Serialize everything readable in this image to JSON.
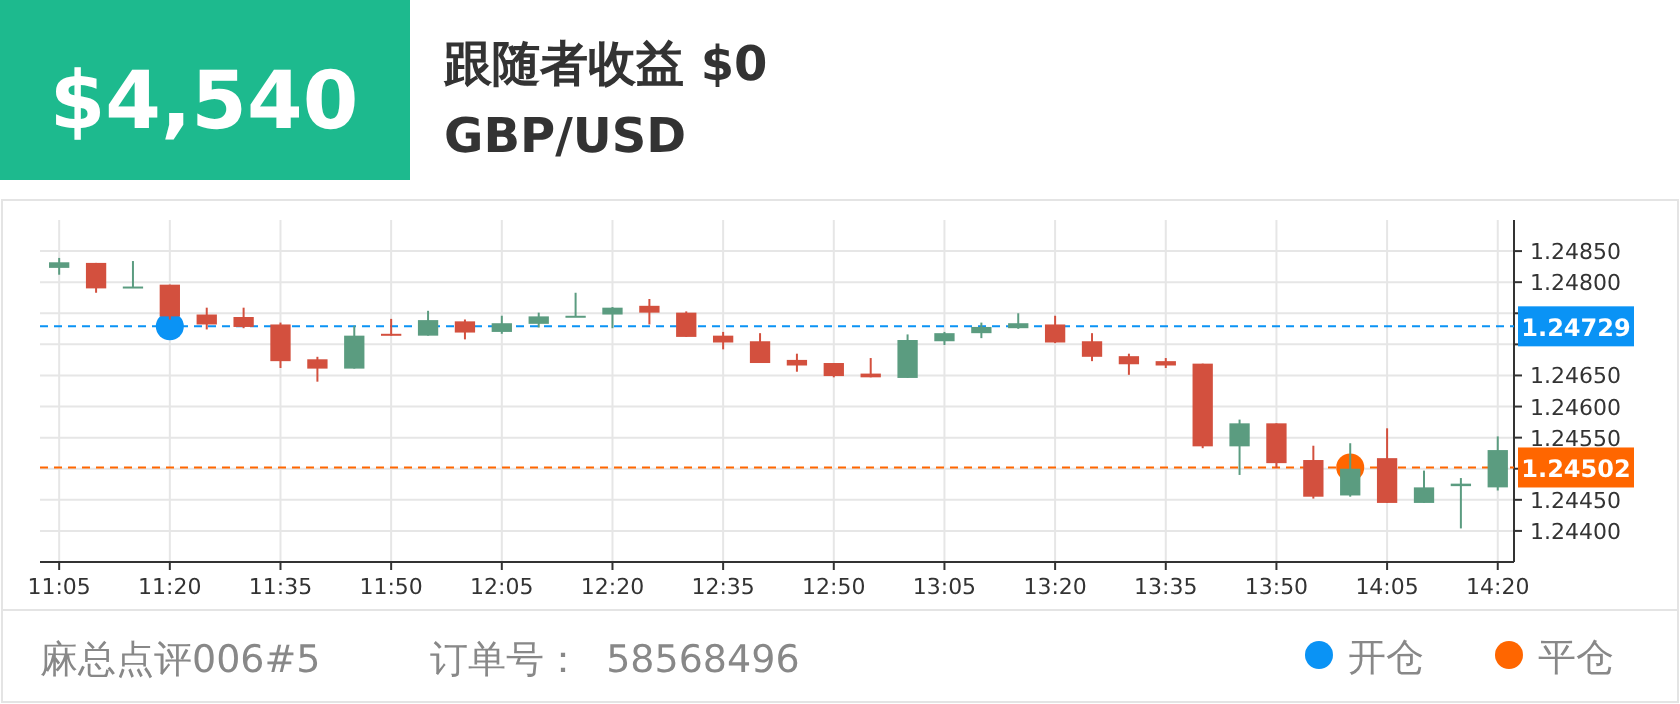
{
  "chart_data": {
    "type": "candlestick",
    "title": "跟随者收益 $0",
    "subtitle": "GBP/USD",
    "annotations": [
      "$4,540",
      "麻总点评006#5",
      "订单号：  58568496"
    ],
    "x": [
      11.0833,
      11.1667,
      11.25,
      11.3333,
      11.4167,
      11.5,
      11.5833,
      11.6667,
      11.75,
      11.8333,
      11.9167,
      12,
      12.0833,
      12.1667,
      12.25,
      12.3333,
      12.4167,
      12.5,
      12.5833,
      12.6667,
      12.75,
      12.8333,
      12.9167,
      13,
      13.0833,
      13.1667,
      13.25,
      13.3333,
      13.4167,
      13.5,
      13.5833,
      13.6667,
      13.75,
      13.8333,
      13.9167,
      14,
      14.0833,
      14.1667,
      14.25,
      14.3333
    ],
    "ohlc": [
      [
        1.24823,
        1.24839,
        1.24812,
        1.24832
      ],
      [
        1.24831,
        1.24831,
        1.24783,
        1.2479
      ],
      [
        1.24792,
        1.24834,
        1.24792,
        1.24793
      ],
      [
        1.24796,
        1.24796,
        1.2474,
        1.24745
      ],
      [
        1.24748,
        1.24759,
        1.24724,
        1.24732
      ],
      [
        1.24744,
        1.24759,
        1.24726,
        1.24728
      ],
      [
        1.24732,
        1.24735,
        1.24662,
        1.24673
      ],
      [
        1.24676,
        1.2468,
        1.2464,
        1.24661
      ],
      [
        1.24661,
        1.2473,
        1.24661,
        1.24714
      ],
      [
        1.24717,
        1.24741,
        1.24714,
        1.24715
      ],
      [
        1.24714,
        1.24754,
        1.24714,
        1.24739
      ],
      [
        1.24737,
        1.2474,
        1.24708,
        1.24719
      ],
      [
        1.2472,
        1.24746,
        1.24717,
        1.24734
      ],
      [
        1.24733,
        1.24751,
        1.24727,
        1.24745
      ],
      [
        1.24745,
        1.24783,
        1.24745,
        1.24746
      ],
      [
        1.24748,
        1.2476,
        1.24726,
        1.24759
      ],
      [
        1.24762,
        1.24773,
        1.24732,
        1.24751
      ],
      [
        1.24751,
        1.24753,
        1.24712,
        1.24712
      ],
      [
        1.24714,
        1.2472,
        1.24692,
        1.24703
      ],
      [
        1.24705,
        1.24718,
        1.2467,
        1.2467
      ],
      [
        1.24675,
        1.24685,
        1.24656,
        1.24666
      ],
      [
        1.2467,
        1.2467,
        1.24647,
        1.24649
      ],
      [
        1.24653,
        1.24678,
        1.24647,
        1.24647
      ],
      [
        1.24646,
        1.24716,
        1.24646,
        1.24707
      ],
      [
        1.24705,
        1.2472,
        1.24699,
        1.24718
      ],
      [
        1.24718,
        1.24735,
        1.2471,
        1.24728
      ],
      [
        1.24726,
        1.2475,
        1.24725,
        1.24734
      ],
      [
        1.24732,
        1.24746,
        1.24702,
        1.24703
      ],
      [
        1.24705,
        1.24718,
        1.24673,
        1.2468
      ],
      [
        1.24681,
        1.24685,
        1.24651,
        1.24668
      ],
      [
        1.24673,
        1.24678,
        1.24662,
        1.24666
      ],
      [
        1.24669,
        1.24669,
        1.24533,
        1.24536
      ],
      [
        1.24536,
        1.24579,
        1.2449,
        1.24573
      ],
      [
        1.24573,
        1.24573,
        1.24501,
        1.24509
      ],
      [
        1.24514,
        1.24537,
        1.24452,
        1.24455
      ],
      [
        1.24457,
        1.24541,
        1.24455,
        1.245
      ],
      [
        1.24517,
        1.24565,
        1.24445,
        1.24445
      ],
      [
        1.24445,
        1.24497,
        1.24445,
        1.2447
      ],
      [
        1.24472,
        1.24485,
        1.24404,
        1.24476
      ],
      [
        1.2447,
        1.24552,
        1.24465,
        1.2453
      ]
    ],
    "colors": [
      "#5b9c80",
      "#d3503e",
      "#5b9c80",
      "#d3503e",
      "#d3503e",
      "#d3503e",
      "#d3503e",
      "#d3503e",
      "#5b9c80",
      "#d3503e",
      "#5b9c80",
      "#d3503e",
      "#5b9c80",
      "#5b9c80",
      "#5b9c80",
      "#5b9c80",
      "#d3503e",
      "#d3503e",
      "#d3503e",
      "#d3503e",
      "#d3503e",
      "#d3503e",
      "#d3503e",
      "#5b9c80",
      "#5b9c80",
      "#5b9c80",
      "#5b9c80",
      "#d3503e",
      "#d3503e",
      "#d3503e",
      "#d3503e",
      "#d3503e",
      "#5b9c80",
      "#d3503e",
      "#d3503e",
      "#5b9c80",
      "#d3503e",
      "#5b9c80",
      "#5b9c80",
      "#5b9c80"
    ],
    "series": [
      {
        "name": "开仓",
        "type": "scatter",
        "color": "#0a93f5",
        "x": [
          11.3333
        ],
        "values": [
          1.24729
        ]
      },
      {
        "name": "平仓",
        "type": "scatter",
        "color": "#ff6600",
        "x": [
          14
        ],
        "values": [
          1.24502
        ]
      }
    ],
    "marker": "circle",
    "ref_lines": [
      {
        "axis": "y",
        "value": 1.24729,
        "label": "1.24729",
        "color": "#0a93f5",
        "line_style": "dashed"
      },
      {
        "axis": "y",
        "value": 1.24502,
        "label": "1.24502",
        "color": "#ff6600",
        "line_style": "dashed"
      }
    ],
    "xlim": [
      11.04,
      14.37
    ],
    "xticks": [
      {
        "value": 11.0833,
        "label": "11:05"
      },
      {
        "value": 11.3333,
        "label": "11:20"
      },
      {
        "value": 11.5833,
        "label": "11:35"
      },
      {
        "value": 11.8333,
        "label": "11:50"
      },
      {
        "value": 12.0833,
        "label": "12:05"
      },
      {
        "value": 12.3333,
        "label": "12:20"
      },
      {
        "value": 12.5833,
        "label": "12:35"
      },
      {
        "value": 12.8333,
        "label": "12:50"
      },
      {
        "value": 13.0833,
        "label": "13:05"
      },
      {
        "value": 13.3333,
        "label": "13:20"
      },
      {
        "value": 13.5833,
        "label": "13:35"
      },
      {
        "value": 13.8333,
        "label": "13:50"
      },
      {
        "value": 14.0833,
        "label": "14:05"
      },
      {
        "value": 14.3333,
        "label": "14:20"
      }
    ],
    "ylim": [
      1.2435,
      1.249
    ],
    "yticks": [
      {
        "value": 1.244,
        "label": "1.24400"
      },
      {
        "value": 1.2445,
        "label": "1.24450"
      },
      {
        "value": 1.245,
        "label": null
      },
      {
        "value": 1.2455,
        "label": "1.24550"
      },
      {
        "value": 1.246,
        "label": "1.24600"
      },
      {
        "value": 1.2465,
        "label": "1.24650"
      },
      {
        "value": 1.247,
        "label": null
      },
      {
        "value": 1.2475,
        "label": null
      },
      {
        "value": 1.248,
        "label": "1.24800"
      },
      {
        "value": 1.2485,
        "label": "1.24850"
      }
    ],
    "grid": true,
    "legend": "bottom right"
  }
}
